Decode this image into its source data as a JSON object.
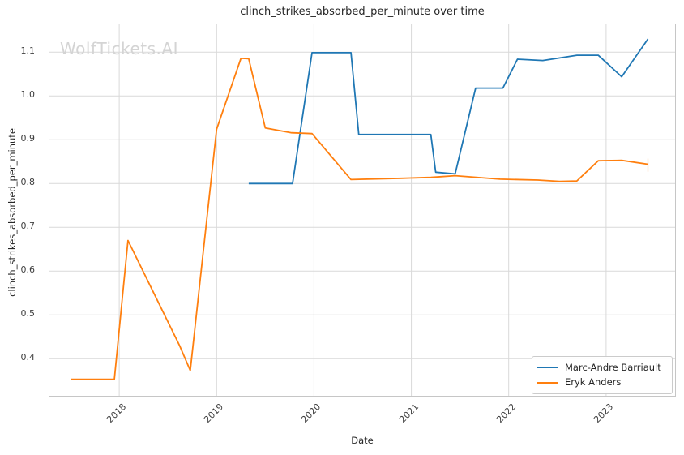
{
  "chart_data": {
    "type": "line",
    "title": "clinch_strikes_absorbed_per_minute over time",
    "xlabel": "Date",
    "ylabel": "clinch_strikes_absorbed_per_minute",
    "watermark": "WolfTickets.AI",
    "grid": true,
    "legend_position": "lower right",
    "x_unit": "year",
    "x_ticks": [
      2018,
      2019,
      2020,
      2021,
      2022,
      2023
    ],
    "y_ticks": [
      0.4,
      0.5,
      0.6,
      0.7,
      0.8,
      0.9,
      1.0,
      1.1
    ],
    "xlim": [
      2017.275,
      2023.717
    ],
    "ylim": [
      0.3135,
      1.1654
    ],
    "series": [
      {
        "name": "Marc-Andre Barriault",
        "color": "#1f77b4",
        "points": [
          [
            2019.33,
            0.8
          ],
          [
            2019.78,
            0.8
          ],
          [
            2019.98,
            1.099
          ],
          [
            2020.38,
            1.099
          ],
          [
            2020.46,
            0.912
          ],
          [
            2021.2,
            0.912
          ],
          [
            2021.25,
            0.826
          ],
          [
            2021.45,
            0.822
          ],
          [
            2021.66,
            1.018
          ],
          [
            2021.94,
            1.018
          ],
          [
            2022.09,
            1.084
          ],
          [
            2022.35,
            1.081
          ],
          [
            2022.7,
            1.093
          ],
          [
            2022.92,
            1.093
          ],
          [
            2023.16,
            1.044
          ],
          [
            2023.43,
            1.13
          ]
        ]
      },
      {
        "name": "Eryk Anders",
        "color": "#ff7f0e",
        "points": [
          [
            2017.5,
            0.353
          ],
          [
            2017.95,
            0.353
          ],
          [
            2018.09,
            0.67
          ],
          [
            2018.62,
            0.43
          ],
          [
            2018.73,
            0.373
          ],
          [
            2019.0,
            0.924
          ],
          [
            2019.25,
            1.086
          ],
          [
            2019.33,
            1.085
          ],
          [
            2019.5,
            0.927
          ],
          [
            2019.77,
            0.916
          ],
          [
            2019.98,
            0.914
          ],
          [
            2020.38,
            0.809
          ],
          [
            2020.9,
            0.812
          ],
          [
            2021.2,
            0.814
          ],
          [
            2021.45,
            0.818
          ],
          [
            2021.91,
            0.81
          ],
          [
            2022.3,
            0.808
          ],
          [
            2022.52,
            0.805
          ],
          [
            2022.7,
            0.806
          ],
          [
            2022.92,
            0.852
          ],
          [
            2023.16,
            0.853
          ],
          [
            2023.43,
            0.844
          ]
        ],
        "end_cap": {
          "x": 2023.43,
          "y1": 0.827,
          "y2": 0.857
        }
      }
    ]
  },
  "theme": {
    "background": "#ffffff",
    "grid_color": "#d9d9d9",
    "spine_color": "#c6c6c6",
    "text_color": "#262626",
    "tick_text_color": "#404040",
    "watermark_color": "#d4d4d4",
    "series_blue": "#1f77b4",
    "series_orange": "#ff7f0e"
  }
}
